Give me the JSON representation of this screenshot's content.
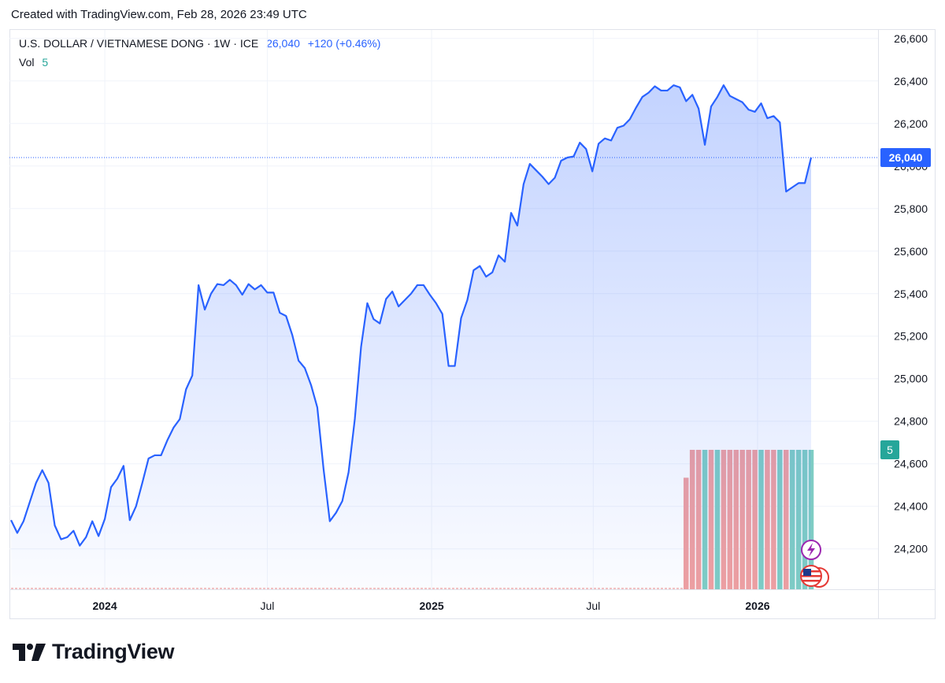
{
  "caption": "Created with TradingView.com, Feb 28, 2026 23:49 UTC",
  "legend": {
    "symbol": "U.S. DOLLAR / VIETNAMESE DONG",
    "interval": "1W",
    "exchange": "ICE",
    "price": "26,040",
    "change": "+120 (+0.46%)",
    "vol_label": "Vol",
    "vol_value": "5"
  },
  "price_badge": "26,040",
  "vol_badge": "5",
  "brand": "TradingView",
  "colors": {
    "line": "#2962ff",
    "up_volume": "#7fcdc4",
    "down_volume": "#f0a0a0",
    "vol_badge": "#26a69a",
    "event_icon": "#9c27b0"
  },
  "icons": [
    "lightning-event-icon",
    "us-flag-icon"
  ],
  "chart_data": {
    "type": "area",
    "title": "U.S. DOLLAR / VIETNAMESE DONG",
    "interval": "1W",
    "xlabel": "",
    "ylabel": "",
    "y_ticks": [
      "24,200",
      "24,400",
      "24,600",
      "24,800",
      "25,000",
      "25,200",
      "25,400",
      "25,600",
      "25,800",
      "26,000",
      "26,200",
      "26,400",
      "26,600"
    ],
    "x_ticks": [
      {
        "label": "2024",
        "major": true,
        "date": "2024-01-01"
      },
      {
        "label": "Jul",
        "major": false,
        "date": "2024-07-01"
      },
      {
        "label": "2025",
        "major": true,
        "date": "2025-01-01"
      },
      {
        "label": "Jul",
        "major": false,
        "date": "2025-07-01"
      },
      {
        "label": "2026",
        "major": true,
        "date": "2026-01-01"
      }
    ],
    "ylim": [
      24010,
      26640
    ],
    "last_price": 26040,
    "series": [
      {
        "values": [
          24335,
          24275,
          24330,
          24420,
          24510,
          24570,
          24510,
          24310,
          24245,
          24255,
          24285,
          24215,
          24255,
          24330,
          24260,
          24340,
          24490,
          24530,
          24590,
          24335,
          24400,
          24510,
          24625,
          24640,
          24640,
          24710,
          24770,
          24810,
          24950,
          25015,
          25440,
          25325,
          25400,
          25445,
          25440,
          25465,
          25440,
          25395,
          25445,
          25420,
          25440,
          25405,
          25405,
          25310,
          25295,
          25205,
          25085,
          25050,
          24970,
          24865,
          24575,
          24330,
          24370,
          24425,
          24560,
          24810,
          25150,
          25355,
          25280,
          25260,
          25375,
          25410,
          25340,
          25370,
          25400,
          25440,
          25440,
          25395,
          25355,
          25305,
          25060,
          25060,
          25285,
          25370,
          25510,
          25530,
          25480,
          25500,
          25580,
          25550,
          25780,
          25720,
          25915,
          26010,
          25980,
          25950,
          25915,
          25945,
          26025,
          26040,
          26045,
          26110,
          26080,
          25975,
          26105,
          26130,
          26120,
          26180,
          26190,
          26220,
          26275,
          26325,
          26345,
          26375,
          26355,
          26355,
          26380,
          26370,
          26305,
          26335,
          26270,
          26100,
          26280,
          26325,
          26380,
          26330,
          26315,
          26300,
          26265,
          26255,
          26295,
          26225,
          26235,
          26205,
          25880,
          25900,
          25920,
          25920,
          26040
        ]
      }
    ],
    "volume": {
      "label": "Vol",
      "start_index": 108,
      "values": [
        4,
        5,
        5,
        5,
        5,
        5,
        5,
        5,
        5,
        5,
        5,
        5,
        5,
        5,
        5,
        5,
        5,
        5,
        5,
        5,
        5
      ],
      "direction": [
        "down",
        "down",
        "down",
        "up",
        "down",
        "up",
        "down",
        "down",
        "down",
        "down",
        "down",
        "down",
        "up",
        "down",
        "down",
        "up",
        "down",
        "up",
        "up",
        "up",
        "up"
      ],
      "last_value": 5
    }
  }
}
